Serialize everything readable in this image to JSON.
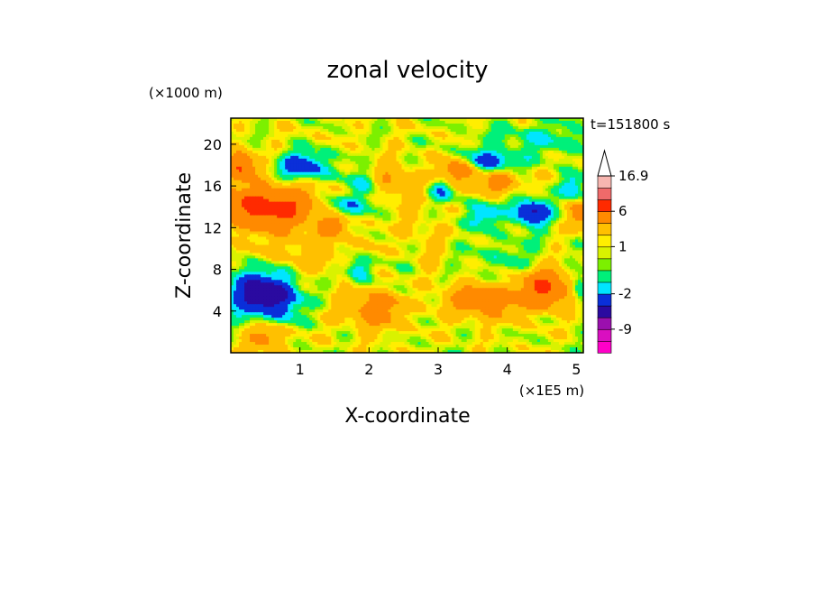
{
  "chart_data": {
    "type": "heatmap",
    "title": "zonal velocity",
    "xlabel": "X-coordinate",
    "ylabel": "Z-coordinate",
    "x_unit": "(×1E5 m)",
    "y_unit": "(×1000 m)",
    "time_label": "t=151800 s",
    "xlim": [
      0,
      5.1
    ],
    "ylim": [
      0,
      22.5
    ],
    "x_ticks": [
      "1",
      "2",
      "3",
      "4",
      "5"
    ],
    "y_ticks": [
      "4",
      "8",
      "12",
      "16",
      "20"
    ],
    "x_tick_values": [
      1,
      2,
      3,
      4,
      5
    ],
    "y_tick_values": [
      4,
      8,
      12,
      16,
      20
    ],
    "colorbar": {
      "max_label": "16.9",
      "labels": [
        {
          "text": "16.9",
          "value": 16.9
        },
        {
          "text": "6",
          "value": 6
        },
        {
          "text": "1",
          "value": 1
        },
        {
          "text": "-2",
          "value": -2
        },
        {
          "text": "-9",
          "value": -9
        }
      ],
      "levels": [
        {
          "color": "#ff00c8",
          "lo": -20,
          "hi": -12
        },
        {
          "color": "#d90fc0",
          "lo": -12,
          "hi": -9
        },
        {
          "color": "#9b0fae",
          "lo": -9,
          "hi": -6
        },
        {
          "color": "#2a0aa0",
          "lo": -6,
          "hi": -4
        },
        {
          "color": "#0a2fd9",
          "lo": -4,
          "hi": -2
        },
        {
          "color": "#00e5ff",
          "lo": -2,
          "hi": -1
        },
        {
          "color": "#00f07a",
          "lo": -1,
          "hi": 0
        },
        {
          "color": "#7cf000",
          "lo": 0,
          "hi": 0.5
        },
        {
          "color": "#d9f200",
          "lo": 0.5,
          "hi": 1
        },
        {
          "color": "#ffee00",
          "lo": 1,
          "hi": 1.5
        },
        {
          "color": "#ffc000",
          "lo": 1.5,
          "hi": 3
        },
        {
          "color": "#ff8a00",
          "lo": 3,
          "hi": 6
        },
        {
          "color": "#ff2a00",
          "lo": 6,
          "hi": 9
        },
        {
          "color": "#f06a6a",
          "lo": 9,
          "hi": 13
        },
        {
          "color": "#f7b6b0",
          "lo": 13,
          "hi": 16.9
        }
      ]
    },
    "features": [
      {
        "x": 0.35,
        "z": 5.8,
        "amp": -5.5,
        "sx": 0.28,
        "sz": 1.6
      },
      {
        "x": 0.75,
        "z": 5.2,
        "amp": -3.5,
        "sx": 0.22,
        "sz": 1.5
      },
      {
        "x": 1.05,
        "z": 17.9,
        "amp": -4.5,
        "sx": 0.25,
        "sz": 0.9
      },
      {
        "x": 1.95,
        "z": 16.2,
        "amp": -3.0,
        "sx": 0.18,
        "sz": 1.0
      },
      {
        "x": 1.65,
        "z": 14.0,
        "amp": -3.0,
        "sx": 0.25,
        "sz": 0.8
      },
      {
        "x": 1.85,
        "z": 8.0,
        "amp": -3.5,
        "sx": 0.12,
        "sz": 0.9
      },
      {
        "x": 3.7,
        "z": 18.3,
        "amp": -4.0,
        "sx": 0.28,
        "sz": 0.7
      },
      {
        "x": 3.65,
        "z": 13.2,
        "amp": -3.0,
        "sx": 0.18,
        "sz": 0.8
      },
      {
        "x": 4.35,
        "z": 13.5,
        "amp": -5.5,
        "sx": 0.18,
        "sz": 0.9
      },
      {
        "x": 4.95,
        "z": 16.0,
        "amp": -3.0,
        "sx": 0.12,
        "sz": 0.8
      },
      {
        "x": 3.05,
        "z": 15.6,
        "amp": -2.5,
        "sx": 0.12,
        "sz": 0.8
      },
      {
        "x": 5.05,
        "z": 6.2,
        "amp": -3.0,
        "sx": 0.08,
        "sz": 1.0
      },
      {
        "x": 0.5,
        "z": 13.9,
        "amp": 6.5,
        "sx": 0.55,
        "sz": 1.4
      },
      {
        "x": 0.15,
        "z": 17.9,
        "amp": 5.5,
        "sx": 0.15,
        "sz": 0.9
      },
      {
        "x": 3.3,
        "z": 17.5,
        "amp": 4.5,
        "sx": 0.2,
        "sz": 0.8
      },
      {
        "x": 3.9,
        "z": 16.3,
        "amp": 3.5,
        "sx": 0.2,
        "sz": 0.7
      },
      {
        "x": 1.5,
        "z": 12.2,
        "amp": 3.0,
        "sx": 0.15,
        "sz": 0.7
      },
      {
        "x": 4.55,
        "z": 6.2,
        "amp": 5.5,
        "sx": 0.25,
        "sz": 1.3
      },
      {
        "x": 3.7,
        "z": 5.0,
        "amp": 3.5,
        "sx": 0.4,
        "sz": 1.2
      },
      {
        "x": 2.1,
        "z": 4.2,
        "amp": 3.5,
        "sx": 0.3,
        "sz": 1.3
      },
      {
        "x": 0.5,
        "z": 1.5,
        "amp": 3.0,
        "sx": 0.2,
        "sz": 1.0
      },
      {
        "x": 5.05,
        "z": 13.2,
        "amp": 3.5,
        "sx": 0.1,
        "sz": 0.8
      },
      {
        "x": 2.25,
        "z": 16.5,
        "amp": 2.5,
        "sx": 0.25,
        "sz": 1.2
      },
      {
        "x": 2.65,
        "z": 10.0,
        "amp": 1.5,
        "sx": 0.25,
        "sz": 3.0
      },
      {
        "x": 2.55,
        "z": 8.5,
        "amp": -1.5,
        "sx": 0.2,
        "sz": 2.5
      },
      {
        "x": 4.0,
        "z": 9.0,
        "amp": -1.2,
        "sx": 0.4,
        "sz": 1.5
      },
      {
        "x": 1.1,
        "z": 9.5,
        "amp": 1.3,
        "sx": 0.6,
        "sz": 1.5
      },
      {
        "x": 4.5,
        "z": 20.5,
        "amp": -1.6,
        "sx": 0.6,
        "sz": 1.2
      }
    ]
  }
}
